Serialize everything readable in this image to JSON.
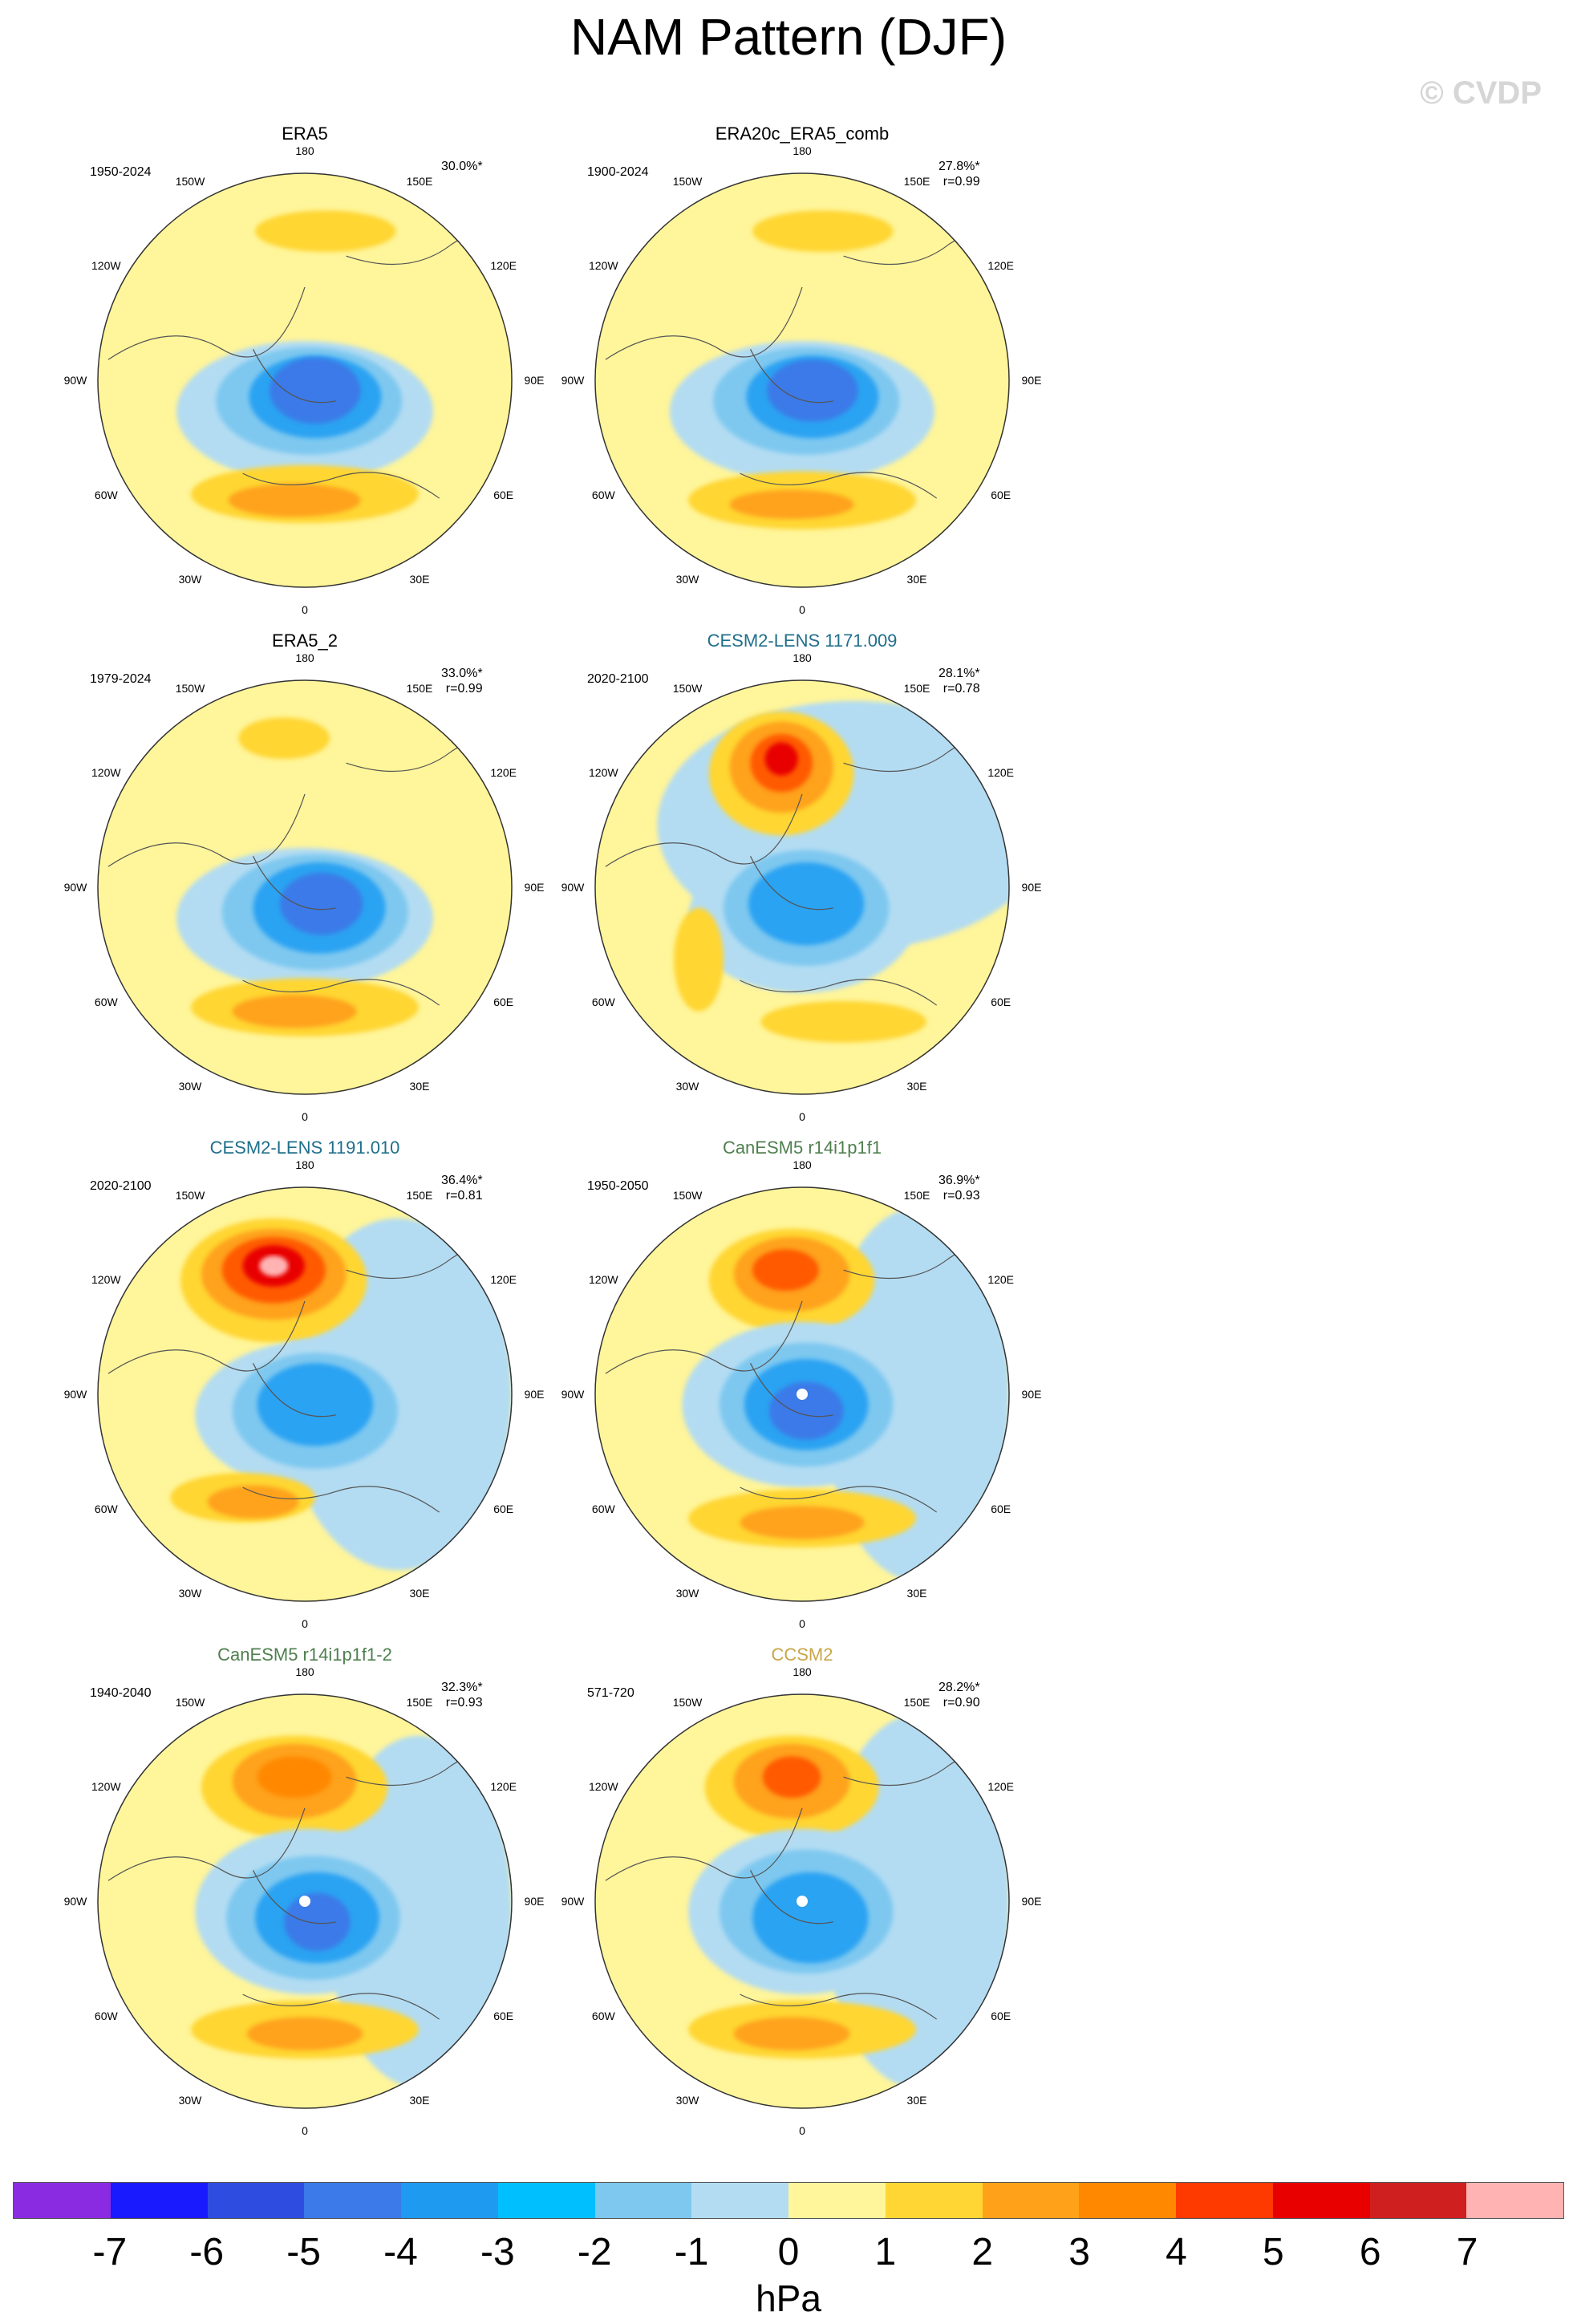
{
  "title": "NAM Pattern (DJF)",
  "watermark": "© CVDP",
  "lon_labels": [
    "180",
    "150E",
    "120E",
    "90E",
    "60E",
    "30E",
    "0",
    "30W",
    "60W",
    "90W",
    "120W",
    "150W"
  ],
  "panels": [
    {
      "title": "ERA5",
      "title_color": "#000000",
      "years": "1950-2024",
      "pct": "30.0%*",
      "r": "",
      "pos": {
        "col": 0,
        "row": 0
      },
      "blobs": [
        [
          "0.10",
          "-0.72",
          "0.34",
          "0.10",
          "#ffd633"
        ],
        [
          "0.00",
          "0.15",
          "0.62",
          "0.34",
          "#b3dcf2"
        ],
        [
          "0.02",
          "0.10",
          "0.45",
          "0.26",
          "#7ec8f0"
        ],
        [
          "0.05",
          "0.08",
          "0.32",
          "0.20",
          "#29a3f2"
        ],
        [
          "0.05",
          "0.05",
          "0.22",
          "0.16",
          "#3b7ae8"
        ],
        [
          "0.0",
          "0.55",
          "0.55",
          "0.14",
          "#ffd633"
        ],
        [
          "-0.05",
          "0.58",
          "0.32",
          "0.08",
          "#ffa21a"
        ]
      ]
    },
    {
      "title": "ERA20c_ERA5_comb",
      "title_color": "#000000",
      "years": "1900-2024",
      "pct": "27.8%*",
      "r": "r=0.99",
      "pos": {
        "col": 1,
        "row": 0
      },
      "blobs": [
        [
          "0.10",
          "-0.72",
          "0.34",
          "0.10",
          "#ffd633"
        ],
        [
          "0.00",
          "0.15",
          "0.64",
          "0.34",
          "#b3dcf2"
        ],
        [
          "0.02",
          "0.10",
          "0.45",
          "0.26",
          "#7ec8f0"
        ],
        [
          "0.05",
          "0.08",
          "0.32",
          "0.20",
          "#29a3f2"
        ],
        [
          "0.05",
          "0.05",
          "0.22",
          "0.15",
          "#3b7ae8"
        ],
        [
          "0.0",
          "0.58",
          "0.55",
          "0.14",
          "#ffd633"
        ],
        [
          "-0.05",
          "0.60",
          "0.30",
          "0.07",
          "#ffa21a"
        ]
      ]
    },
    {
      "title": "ERA5_2",
      "title_color": "#000000",
      "years": "1979-2024",
      "pct": "33.0%*",
      "r": "r=0.99",
      "pos": {
        "col": 0,
        "row": 1
      },
      "blobs": [
        [
          "-0.1",
          "-0.72",
          "0.22",
          "0.10",
          "#ffd633"
        ],
        [
          "0.00",
          "0.15",
          "0.62",
          "0.34",
          "#b3dcf2"
        ],
        [
          "0.05",
          "0.12",
          "0.45",
          "0.28",
          "#7ec8f0"
        ],
        [
          "0.07",
          "0.10",
          "0.32",
          "0.22",
          "#29a3f2"
        ],
        [
          "0.08",
          "0.08",
          "0.20",
          "0.15",
          "#3b7ae8"
        ],
        [
          "0.0",
          "0.58",
          "0.55",
          "0.14",
          "#ffd633"
        ],
        [
          "-0.05",
          "0.60",
          "0.30",
          "0.08",
          "#ffa21a"
        ]
      ]
    },
    {
      "title": "CESM2-LENS 1171.009",
      "title_color": "#1f6f8b",
      "years": "2020-2100",
      "pct": "28.1%*",
      "r": "r=0.78",
      "pos": {
        "col": 1,
        "row": 1
      },
      "blobs": [
        [
          "0.25",
          "-0.30",
          "0.95",
          "0.60",
          "#b3dcf2"
        ],
        [
          "-0.1",
          "-0.55",
          "0.35",
          "0.30",
          "#ffd633"
        ],
        [
          "-0.1",
          "-0.58",
          "0.25",
          "0.22",
          "#ffa21a"
        ],
        [
          "-0.1",
          "-0.60",
          "0.15",
          "0.14",
          "#ff5a00"
        ],
        [
          "-0.1",
          "-0.62",
          "0.08",
          "0.08",
          "#e80000"
        ],
        [
          "0.00",
          "0.15",
          "0.55",
          "0.36",
          "#b3dcf2"
        ],
        [
          "0.02",
          "0.10",
          "0.40",
          "0.28",
          "#7ec8f0"
        ],
        [
          "0.02",
          "0.08",
          "0.28",
          "0.20",
          "#29a3f2"
        ],
        [
          "-0.5",
          "0.35",
          "0.12",
          "0.25",
          "#ffd633"
        ],
        [
          "0.2",
          "0.65",
          "0.40",
          "0.10",
          "#ffd633"
        ]
      ]
    },
    {
      "title": "CESM2-LENS 1191.010",
      "title_color": "#1f6f8b",
      "years": "2020-2100",
      "pct": "36.4%*",
      "r": "r=0.81",
      "pos": {
        "col": 0,
        "row": 2
      },
      "blobs": [
        [
          "0.45",
          "0.00",
          "0.55",
          "0.85",
          "#b3dcf2"
        ],
        [
          "-0.15",
          "-0.55",
          "0.45",
          "0.30",
          "#ffd633"
        ],
        [
          "-0.15",
          "-0.58",
          "0.35",
          "0.22",
          "#ffa21a"
        ],
        [
          "-0.15",
          "-0.60",
          "0.25",
          "0.16",
          "#ff5a00"
        ],
        [
          "-0.15",
          "-0.62",
          "0.15",
          "0.10",
          "#e80000"
        ],
        [
          "-0.15",
          "-0.62",
          "0.07",
          "0.05",
          "#ffb3b3"
        ],
        [
          "0.05",
          "0.10",
          "0.58",
          "0.36",
          "#b3dcf2"
        ],
        [
          "0.05",
          "0.08",
          "0.40",
          "0.28",
          "#7ec8f0"
        ],
        [
          "0.05",
          "0.05",
          "0.28",
          "0.20",
          "#29a3f2"
        ],
        [
          "-0.3",
          "0.50",
          "0.35",
          "0.12",
          "#ffd633"
        ],
        [
          "-0.25",
          "0.52",
          "0.22",
          "0.08",
          "#ffa21a"
        ]
      ]
    },
    {
      "title": "CanESM5 r14i1p1f1",
      "title_color": "#4f7f4f",
      "years": "1950-2050",
      "pct": "36.9%*",
      "r": "r=0.93",
      "pos": {
        "col": 1,
        "row": 2
      },
      "blobs": [
        [
          "0.55",
          "0.00",
          "0.45",
          "0.90",
          "#b3dcf2"
        ],
        [
          "-0.05",
          "-0.55",
          "0.40",
          "0.25",
          "#ffd633"
        ],
        [
          "-0.05",
          "-0.58",
          "0.28",
          "0.18",
          "#ffa21a"
        ],
        [
          "-0.08",
          "-0.60",
          "0.16",
          "0.10",
          "#ff5a00"
        ],
        [
          "0.00",
          "0.05",
          "0.58",
          "0.40",
          "#b3dcf2"
        ],
        [
          "0.02",
          "0.05",
          "0.42",
          "0.30",
          "#7ec8f0"
        ],
        [
          "0.02",
          "0.05",
          "0.30",
          "0.22",
          "#29a3f2"
        ],
        [
          "0.02",
          "0.08",
          "0.18",
          "0.14",
          "#3b7ae8"
        ],
        [
          "0.0",
          "0.60",
          "0.55",
          "0.14",
          "#ffd633"
        ],
        [
          "0.0",
          "0.62",
          "0.30",
          "0.08",
          "#ffa21a"
        ]
      ]
    },
    {
      "title": "CanESM5 r14i1p1f1-2",
      "title_color": "#4f7f4f",
      "years": "1940-2040",
      "pct": "32.3%*",
      "r": "r=0.93",
      "pos": {
        "col": 0,
        "row": 3
      },
      "blobs": [
        [
          "0.55",
          "0.05",
          "0.45",
          "0.85",
          "#b3dcf2"
        ],
        [
          "-0.05",
          "-0.55",
          "0.45",
          "0.25",
          "#ffd633"
        ],
        [
          "-0.05",
          "-0.58",
          "0.30",
          "0.18",
          "#ffa21a"
        ],
        [
          "-0.05",
          "-0.60",
          "0.18",
          "0.10",
          "#ff8800"
        ],
        [
          "0.02",
          "0.05",
          "0.55",
          "0.40",
          "#b3dcf2"
        ],
        [
          "0.04",
          "0.08",
          "0.42",
          "0.30",
          "#7ec8f0"
        ],
        [
          "0.06",
          "0.08",
          "0.30",
          "0.22",
          "#29a3f2"
        ],
        [
          "0.06",
          "0.10",
          "0.16",
          "0.14",
          "#3b7ae8"
        ],
        [
          "0.0",
          "0.62",
          "0.55",
          "0.14",
          "#ffd633"
        ],
        [
          "0.0",
          "0.64",
          "0.28",
          "0.08",
          "#ffa21a"
        ]
      ]
    },
    {
      "title": "CCSM2",
      "title_color": "#c9a648",
      "years": "571-720",
      "pct": "28.2%*",
      "r": "r=0.90",
      "pos": {
        "col": 1,
        "row": 3
      },
      "blobs": [
        [
          "0.55",
          "0.00",
          "0.45",
          "0.90",
          "#b3dcf2"
        ],
        [
          "-0.05",
          "-0.55",
          "0.42",
          "0.25",
          "#ffd633"
        ],
        [
          "-0.05",
          "-0.58",
          "0.28",
          "0.18",
          "#ffa21a"
        ],
        [
          "-0.05",
          "-0.60",
          "0.14",
          "0.10",
          "#ff5a00"
        ],
        [
          "0.00",
          "0.05",
          "0.55",
          "0.40",
          "#b3dcf2"
        ],
        [
          "0.02",
          "0.05",
          "0.42",
          "0.30",
          "#7ec8f0"
        ],
        [
          "0.04",
          "0.08",
          "0.28",
          "0.22",
          "#29a3f2"
        ],
        [
          "0.0",
          "0.62",
          "0.55",
          "0.14",
          "#ffd633"
        ],
        [
          "-0.05",
          "0.64",
          "0.28",
          "0.08",
          "#ffa21a"
        ]
      ]
    }
  ],
  "colorbar": {
    "colors": [
      "#8a2be2",
      "#1a1aff",
      "#2e4de0",
      "#3b7ae8",
      "#1e9bf0",
      "#00bfff",
      "#7ec8f0",
      "#b3dcf2",
      "#fff59a",
      "#ffd633",
      "#ffa21a",
      "#ff8800",
      "#ff3a00",
      "#e80000",
      "#d01f1f",
      "#ffb3b3"
    ],
    "ticks": [
      "-7",
      "-6",
      "-5",
      "-4",
      "-3",
      "-2",
      "-1",
      "0",
      "1",
      "2",
      "3",
      "4",
      "5",
      "6",
      "7"
    ],
    "units": "hPa"
  }
}
